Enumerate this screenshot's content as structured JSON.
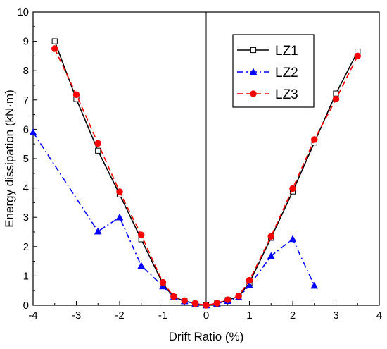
{
  "chart_data": {
    "type": "line",
    "xlabel": "Drift Ratio (%)",
    "ylabel": "Energy dissipation (kN·m)",
    "xlim": [
      -4,
      4
    ],
    "ylim": [
      0,
      10
    ],
    "x_ticks": [
      "-4",
      "-3",
      "-2",
      "-1",
      "0",
      "1",
      "2",
      "3",
      "4"
    ],
    "y_ticks": [
      "0",
      "1",
      "2",
      "3",
      "4",
      "5",
      "6",
      "7",
      "8",
      "9",
      "10"
    ],
    "grid": false,
    "legend_position": "top-right",
    "vertical_reference_line_at_x": 0,
    "series": [
      {
        "name": "LZ1",
        "color": "#000000",
        "line_style": "solid",
        "marker": "open-square",
        "points": [
          [
            -3.5,
            9.0
          ],
          [
            -3.0,
            7.03
          ],
          [
            -2.5,
            5.27
          ],
          [
            -2.0,
            3.78
          ],
          [
            -1.5,
            2.25
          ],
          [
            -1.0,
            0.73
          ],
          [
            -0.75,
            0.28
          ],
          [
            -0.5,
            0.15
          ],
          [
            -0.25,
            0.05
          ],
          [
            0.0,
            0.0
          ],
          [
            0.25,
            0.06
          ],
          [
            0.5,
            0.18
          ],
          [
            0.75,
            0.3
          ],
          [
            1.0,
            0.77
          ],
          [
            1.5,
            2.3
          ],
          [
            2.0,
            3.88
          ],
          [
            2.5,
            5.55
          ],
          [
            3.0,
            7.22
          ],
          [
            3.5,
            8.65
          ]
        ]
      },
      {
        "name": "LZ2",
        "color": "#0000ff",
        "line_style": "dash-dot",
        "marker": "filled-triangle",
        "points": [
          [
            -4.0,
            5.9
          ],
          [
            -2.5,
            2.52
          ],
          [
            -2.0,
            3.0
          ],
          [
            -1.5,
            1.35
          ],
          [
            -1.0,
            0.65
          ],
          [
            -0.75,
            0.27
          ],
          [
            -0.5,
            0.14
          ],
          [
            -0.25,
            0.05
          ],
          [
            0.0,
            0.0
          ],
          [
            0.25,
            0.05
          ],
          [
            0.5,
            0.15
          ],
          [
            0.75,
            0.27
          ],
          [
            1.0,
            0.68
          ],
          [
            1.5,
            1.68
          ],
          [
            2.0,
            2.26
          ],
          [
            2.5,
            0.67
          ]
        ]
      },
      {
        "name": "LZ3",
        "color": "#ff0000",
        "line_style": "dashed",
        "marker": "filled-circle",
        "points": [
          [
            -3.5,
            8.75
          ],
          [
            -3.0,
            7.18
          ],
          [
            -2.5,
            5.52
          ],
          [
            -2.0,
            3.87
          ],
          [
            -1.5,
            2.4
          ],
          [
            -1.0,
            0.78
          ],
          [
            -0.75,
            0.3
          ],
          [
            -0.5,
            0.16
          ],
          [
            -0.25,
            0.06
          ],
          [
            0.0,
            0.0
          ],
          [
            0.25,
            0.07
          ],
          [
            0.5,
            0.19
          ],
          [
            0.75,
            0.32
          ],
          [
            1.0,
            0.85
          ],
          [
            1.5,
            2.35
          ],
          [
            2.0,
            3.98
          ],
          [
            2.5,
            5.65
          ],
          [
            3.0,
            7.03
          ],
          [
            3.5,
            8.5
          ]
        ]
      }
    ]
  }
}
